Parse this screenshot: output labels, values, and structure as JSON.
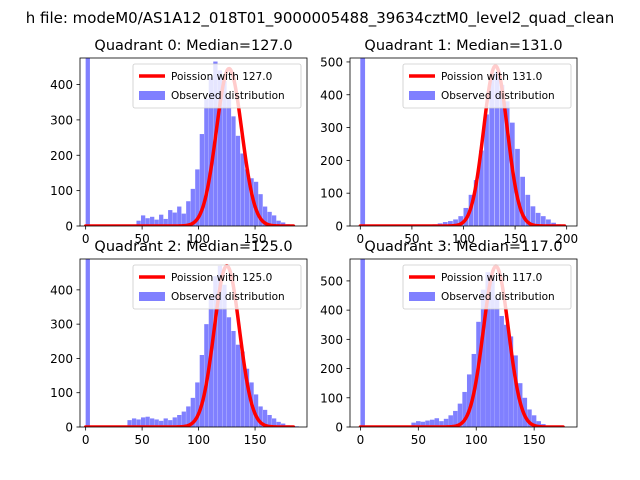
{
  "suptitle": "h file: modeM0/AS1A12_018T01_9000005488_39634cztM0_level2_quad_clean",
  "colors": {
    "hist": "#8080ff",
    "poisson": "#ff0000",
    "axes": "#000000",
    "background": "#ffffff"
  },
  "chart_data": [
    {
      "type": "bar",
      "title": "Quadrant 0: Median=127.0",
      "median": 127.0,
      "xlim": [
        -5,
        196
      ],
      "ylim": [
        0,
        475
      ],
      "xticks": [
        0,
        50,
        100,
        150
      ],
      "yticks": [
        0,
        100,
        200,
        300,
        400
      ],
      "xtick_labels": [
        "0",
        "50",
        "100",
        "150"
      ],
      "ytick_labels": [
        "0",
        "100",
        "200",
        "300",
        "400"
      ],
      "legend": [
        "Poission with 127.0",
        "Observed distribution"
      ],
      "legend_position": "top-right",
      "bin_width": 3.8,
      "bin_starts": [
        0,
        45,
        49,
        53,
        57,
        61,
        65,
        69,
        73,
        77,
        81,
        85,
        89,
        93,
        97,
        101,
        105,
        109,
        113,
        117,
        121,
        125,
        129,
        133,
        137,
        141,
        145,
        149,
        153,
        157,
        161,
        165,
        169,
        173,
        177,
        181
      ],
      "counts": [
        475,
        15,
        30,
        22,
        26,
        18,
        32,
        20,
        45,
        38,
        55,
        35,
        70,
        105,
        160,
        260,
        360,
        420,
        465,
        440,
        410,
        365,
        310,
        255,
        205,
        160,
        135,
        125,
        90,
        55,
        40,
        30,
        15,
        10,
        5,
        3
      ],
      "poisson_peak": 445
    },
    {
      "type": "bar",
      "title": "Quadrant 1: Median=131.0",
      "median": 131.0,
      "xlim": [
        -10,
        210
      ],
      "ylim": [
        0,
        512
      ],
      "xticks": [
        0,
        50,
        100,
        150,
        200
      ],
      "yticks": [
        0,
        100,
        200,
        300,
        400,
        500
      ],
      "xtick_labels": [
        "0",
        "50",
        "100",
        "150",
        "200"
      ],
      "ytick_labels": [
        "0",
        "100",
        "200",
        "300",
        "400",
        "500"
      ],
      "legend": [
        "Poission with 131.0",
        "Observed distribution"
      ],
      "legend_position": "top-right",
      "bin_width": 4.6,
      "bin_starts": [
        0,
        70,
        75,
        80,
        85,
        90,
        95,
        100,
        105,
        110,
        115,
        120,
        125,
        130,
        135,
        140,
        145,
        150,
        155,
        160,
        165,
        170,
        175,
        180,
        185,
        190,
        195
      ],
      "counts": [
        512,
        5,
        8,
        12,
        15,
        20,
        30,
        55,
        95,
        140,
        230,
        340,
        450,
        470,
        430,
        380,
        315,
        235,
        150,
        95,
        60,
        40,
        30,
        20,
        10,
        5,
        3
      ],
      "poisson_peak": 488
    },
    {
      "type": "bar",
      "title": "Quadrant 2: Median=125.0",
      "median": 125.0,
      "xlim": [
        -5,
        196
      ],
      "ylim": [
        0,
        490
      ],
      "xticks": [
        0,
        50,
        100,
        150
      ],
      "yticks": [
        0,
        100,
        200,
        300,
        400
      ],
      "xtick_labels": [
        "0",
        "50",
        "100",
        "150"
      ],
      "ytick_labels": [
        "0",
        "100",
        "200",
        "300",
        "400"
      ],
      "legend": [
        "Poission with 125.0",
        "Observed distribution"
      ],
      "legend_position": "top-right",
      "bin_width": 3.8,
      "bin_starts": [
        0,
        37,
        41,
        45,
        49,
        53,
        57,
        61,
        65,
        69,
        73,
        77,
        81,
        85,
        89,
        93,
        97,
        101,
        105,
        109,
        113,
        117,
        121,
        125,
        129,
        133,
        137,
        141,
        145,
        149,
        153,
        157,
        161,
        165,
        169,
        173,
        177,
        181,
        185
      ],
      "counts": [
        490,
        20,
        25,
        22,
        28,
        30,
        25,
        22,
        18,
        25,
        20,
        28,
        35,
        45,
        60,
        85,
        130,
        210,
        300,
        380,
        440,
        470,
        415,
        320,
        280,
        240,
        220,
        170,
        130,
        95,
        60,
        50,
        35,
        25,
        15,
        10,
        5,
        3,
        2
      ],
      "poisson_peak": 470
    },
    {
      "type": "bar",
      "title": "Quadrant 3: Median=117.0",
      "median": 117.0,
      "xlim": [
        -9,
        187
      ],
      "ylim": [
        0,
        575
      ],
      "xticks": [
        0,
        50,
        100,
        150
      ],
      "yticks": [
        0,
        100,
        200,
        300,
        400,
        500
      ],
      "xtick_labels": [
        "0",
        "50",
        "100",
        "150"
      ],
      "ytick_labels": [
        "0",
        "100",
        "200",
        "300",
        "400",
        "500"
      ],
      "legend": [
        "Poission with 117.0",
        "Observed distribution"
      ],
      "legend_position": "top-right",
      "bin_width": 3.9,
      "bin_starts": [
        0,
        44,
        48,
        52,
        56,
        60,
        64,
        68,
        72,
        76,
        80,
        84,
        88,
        92,
        96,
        100,
        104,
        108,
        112,
        116,
        120,
        124,
        128,
        132,
        136,
        140,
        144,
        148,
        152,
        156,
        160
      ],
      "counts": [
        575,
        15,
        20,
        18,
        22,
        25,
        30,
        20,
        28,
        40,
        55,
        80,
        120,
        180,
        250,
        360,
        470,
        530,
        510,
        440,
        380,
        350,
        310,
        245,
        150,
        100,
        60,
        40,
        20,
        10,
        5
      ],
      "poisson_peak": 550
    }
  ]
}
